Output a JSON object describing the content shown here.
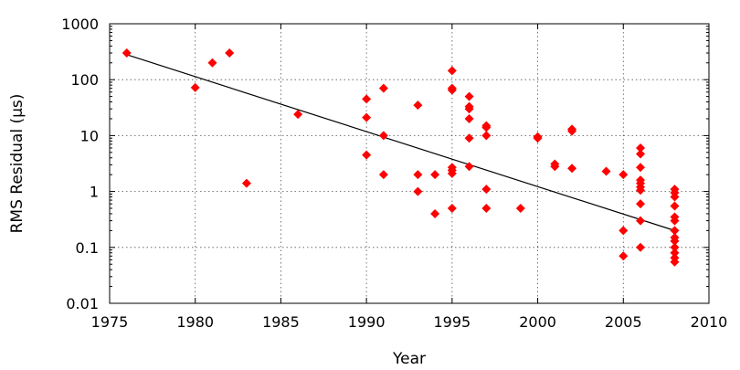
{
  "chart_data": {
    "type": "scatter",
    "title": "",
    "xlabel": "Year",
    "ylabel": "RMS Residual (μs)",
    "xlim": [
      1975,
      2010
    ],
    "ylim": [
      0.01,
      1000
    ],
    "yscale": "log",
    "grid": true,
    "marker_color": "#ff0000",
    "x_ticks": [
      1975,
      1980,
      1985,
      1990,
      1995,
      2000,
      2005,
      2010
    ],
    "x_tick_labels": [
      "1975",
      "1980",
      "1985",
      "1990",
      "1995",
      "2000",
      "2005",
      "2010"
    ],
    "y_ticks": [
      0.01,
      0.1,
      1,
      10,
      100,
      1000
    ],
    "y_tick_labels": [
      "0.01",
      "0.1",
      "1",
      "10",
      "100",
      "1000"
    ],
    "series": [
      {
        "type": "scatter",
        "points": [
          [
            1976,
            300
          ],
          [
            1980,
            72
          ],
          [
            1981,
            200
          ],
          [
            1982,
            300
          ],
          [
            1983,
            1.4
          ],
          [
            1986,
            24
          ],
          [
            1990,
            45
          ],
          [
            1990,
            21
          ],
          [
            1990,
            4.5
          ],
          [
            1991,
            70
          ],
          [
            1991,
            10
          ],
          [
            1991,
            2
          ],
          [
            1993,
            35
          ],
          [
            1993,
            2
          ],
          [
            1993,
            1
          ],
          [
            1994,
            2
          ],
          [
            1994,
            0.4
          ],
          [
            1995,
            145
          ],
          [
            1995,
            70
          ],
          [
            1995,
            65
          ],
          [
            1995,
            2.7
          ],
          [
            1995,
            2.4
          ],
          [
            1995,
            2.1
          ],
          [
            1995,
            0.5
          ],
          [
            1996,
            50
          ],
          [
            1996,
            33
          ],
          [
            1996,
            30
          ],
          [
            1996,
            20
          ],
          [
            1996,
            9
          ],
          [
            1996,
            2.8
          ],
          [
            1997,
            15
          ],
          [
            1997,
            14
          ],
          [
            1997,
            10
          ],
          [
            1997,
            1.1
          ],
          [
            1997,
            0.5
          ],
          [
            1999,
            0.5
          ],
          [
            2000,
            9.5
          ],
          [
            2000,
            9
          ],
          [
            2001,
            3.1
          ],
          [
            2001,
            2.8
          ],
          [
            2002,
            13
          ],
          [
            2002,
            12
          ],
          [
            2002,
            2.6
          ],
          [
            2004,
            2.3
          ],
          [
            2005,
            2
          ],
          [
            2005,
            0.2
          ],
          [
            2005,
            0.07
          ],
          [
            2006,
            6
          ],
          [
            2006,
            4.7
          ],
          [
            2006,
            2.7
          ],
          [
            2006,
            1.6
          ],
          [
            2006,
            1.4
          ],
          [
            2006,
            1.2
          ],
          [
            2006,
            1.05
          ],
          [
            2006,
            0.6
          ],
          [
            2006,
            0.3
          ],
          [
            2006,
            0.1
          ],
          [
            2008,
            1.1
          ],
          [
            2008,
            0.95
          ],
          [
            2008,
            0.8
          ],
          [
            2008,
            0.55
          ],
          [
            2008,
            0.35
          ],
          [
            2008,
            0.3
          ],
          [
            2008,
            0.2
          ],
          [
            2008,
            0.15
          ],
          [
            2008,
            0.13
          ],
          [
            2008,
            0.1
          ],
          [
            2008,
            0.08
          ],
          [
            2008,
            0.065
          ],
          [
            2008,
            0.055
          ]
        ]
      },
      {
        "type": "line",
        "points": [
          [
            1976,
            280
          ],
          [
            2008,
            0.2
          ]
        ]
      }
    ]
  }
}
